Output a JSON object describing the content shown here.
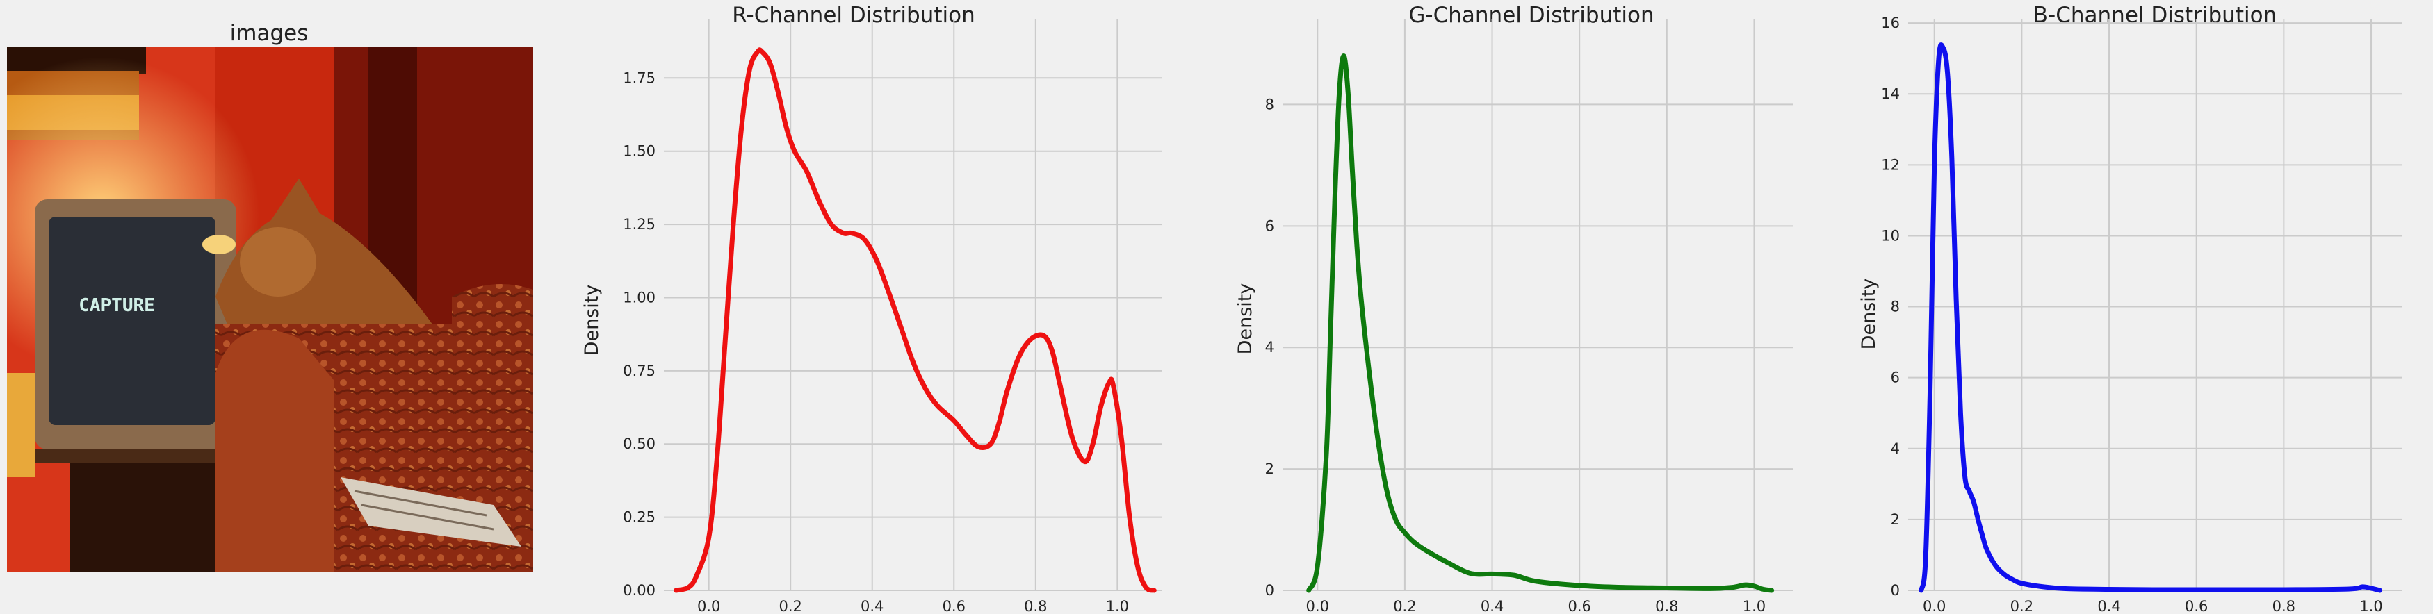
{
  "chart_data": [
    {
      "type": "image",
      "title": "images",
      "image_icon": "cat-on-armchair-beside-crt-tv-photo",
      "tv_text": "CAPTURE",
      "colors": {
        "wall": "#c8280e",
        "cat": "#a85a26",
        "chair": "#8a2c14"
      }
    },
    {
      "type": "line",
      "title": "R-Channel Distribution",
      "xlabel": "",
      "ylabel": "Density",
      "color": "#ee1111",
      "xlim": [
        -0.11,
        1.11
      ],
      "ylim": [
        0,
        1.95
      ],
      "xticks": [
        0.0,
        0.2,
        0.4,
        0.6,
        0.8,
        1.0
      ],
      "xtick_labels": [
        "0.0",
        "0.2",
        "0.4",
        "0.6",
        "0.8",
        "1.0"
      ],
      "yticks": [
        0,
        0.25,
        0.5,
        0.75,
        1.0,
        1.25,
        1.5,
        1.75
      ],
      "ytick_labels": [
        "0.00",
        "0.25",
        "0.50",
        "0.75",
        "1.00",
        "1.25",
        "1.50",
        "1.75"
      ],
      "grid": true,
      "x": [
        -0.08,
        -0.05,
        -0.03,
        0.0,
        0.02,
        0.04,
        0.06,
        0.08,
        0.1,
        0.12,
        0.13,
        0.15,
        0.17,
        0.19,
        0.21,
        0.24,
        0.27,
        0.3,
        0.33,
        0.35,
        0.38,
        0.41,
        0.44,
        0.47,
        0.5,
        0.53,
        0.56,
        0.6,
        0.63,
        0.66,
        0.69,
        0.71,
        0.73,
        0.76,
        0.79,
        0.82,
        0.84,
        0.86,
        0.89,
        0.92,
        0.94,
        0.96,
        0.98,
        0.99,
        1.01,
        1.03,
        1.05,
        1.07,
        1.09
      ],
      "y": [
        0.0,
        0.01,
        0.05,
        0.18,
        0.45,
        0.85,
        1.25,
        1.58,
        1.78,
        1.84,
        1.84,
        1.8,
        1.7,
        1.58,
        1.5,
        1.43,
        1.33,
        1.25,
        1.22,
        1.22,
        1.2,
        1.13,
        1.02,
        0.9,
        0.78,
        0.69,
        0.63,
        0.58,
        0.53,
        0.49,
        0.5,
        0.57,
        0.68,
        0.8,
        0.86,
        0.87,
        0.82,
        0.7,
        0.52,
        0.44,
        0.5,
        0.63,
        0.71,
        0.7,
        0.52,
        0.25,
        0.08,
        0.01,
        0.0
      ]
    },
    {
      "type": "line",
      "title": "G-Channel Distribution",
      "xlabel": "",
      "ylabel": "Density",
      "color": "#0e7a0e",
      "xlim": [
        -0.08,
        1.09
      ],
      "ylim": [
        0,
        9.4
      ],
      "xticks": [
        0.0,
        0.2,
        0.4,
        0.6,
        0.8,
        1.0
      ],
      "xtick_labels": [
        "0.0",
        "0.2",
        "0.4",
        "0.6",
        "0.8",
        "1.0"
      ],
      "yticks": [
        0,
        2,
        4,
        6,
        8
      ],
      "ytick_labels": [
        "0",
        "2",
        "4",
        "6",
        "8"
      ],
      "grid": true,
      "x": [
        -0.02,
        0.0,
        0.02,
        0.03,
        0.04,
        0.05,
        0.06,
        0.07,
        0.08,
        0.09,
        0.1,
        0.12,
        0.14,
        0.16,
        0.18,
        0.2,
        0.22,
        0.25,
        0.3,
        0.35,
        0.4,
        0.45,
        0.5,
        0.6,
        0.7,
        0.8,
        0.9,
        0.95,
        0.98,
        1.0,
        1.02,
        1.04
      ],
      "y": [
        0.0,
        0.4,
        2.2,
        4.3,
        6.5,
        8.2,
        8.8,
        8.2,
        6.9,
        5.7,
        4.8,
        3.5,
        2.4,
        1.6,
        1.15,
        0.95,
        0.8,
        0.65,
        0.45,
        0.28,
        0.27,
        0.25,
        0.15,
        0.08,
        0.05,
        0.04,
        0.03,
        0.05,
        0.09,
        0.07,
        0.02,
        0.0
      ]
    },
    {
      "type": "line",
      "title": "B-Channel Distribution",
      "xlabel": "",
      "ylabel": "Density",
      "color": "#1010ee",
      "xlim": [
        -0.06,
        1.07
      ],
      "ylim": [
        0,
        16.1
      ],
      "xticks": [
        0.0,
        0.2,
        0.4,
        0.6,
        0.8,
        1.0
      ],
      "xtick_labels": [
        "0.0",
        "0.2",
        "0.4",
        "0.6",
        "0.8",
        "1.0"
      ],
      "yticks": [
        0,
        2,
        4,
        6,
        8,
        10,
        12,
        14,
        16
      ],
      "ytick_labels": [
        "0",
        "2",
        "4",
        "6",
        "8",
        "10",
        "12",
        "14",
        "16"
      ],
      "grid": true,
      "x": [
        -0.03,
        -0.02,
        -0.01,
        0.0,
        0.01,
        0.02,
        0.03,
        0.04,
        0.05,
        0.06,
        0.07,
        0.08,
        0.09,
        0.1,
        0.11,
        0.12,
        0.14,
        0.16,
        0.18,
        0.2,
        0.25,
        0.3,
        0.4,
        0.5,
        0.6,
        0.8,
        0.95,
        0.98,
        1.0,
        1.02
      ],
      "y": [
        0.0,
        0.9,
        5.5,
        12.0,
        15.0,
        15.3,
        14.6,
        12.2,
        8.2,
        5.0,
        3.2,
        2.8,
        2.5,
        2.0,
        1.55,
        1.15,
        0.7,
        0.45,
        0.3,
        0.2,
        0.1,
        0.05,
        0.03,
        0.02,
        0.02,
        0.02,
        0.04,
        0.1,
        0.06,
        0.0
      ]
    }
  ]
}
